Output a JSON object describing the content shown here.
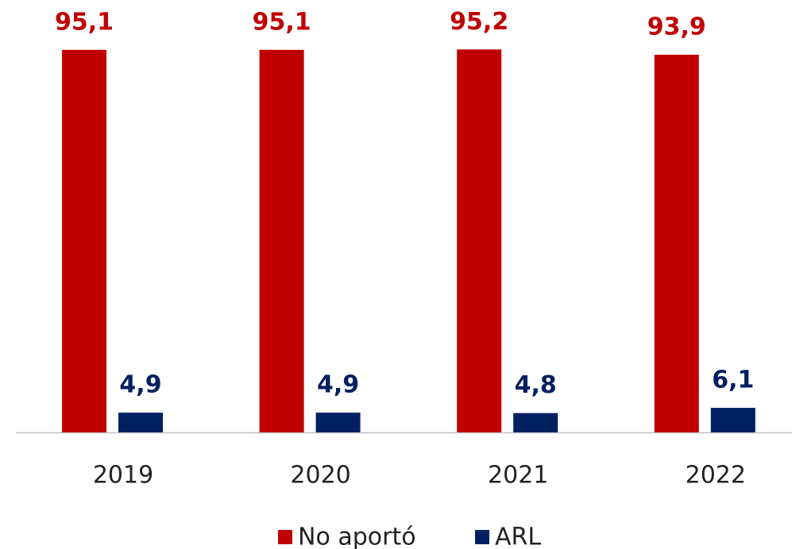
{
  "chart_data": {
    "type": "bar",
    "categories": [
      "2019",
      "2020",
      "2021",
      "2022"
    ],
    "series": [
      {
        "name": "No aportó",
        "color": "#c00000",
        "values": [
          95.1,
          95.1,
          95.2,
          93.9
        ],
        "value_labels": [
          "95,1",
          "95,1",
          "95,2",
          "93,9"
        ]
      },
      {
        "name": "ARL",
        "color": "#002060",
        "values": [
          4.9,
          4.9,
          4.8,
          6.1
        ],
        "value_labels": [
          "4,9",
          "4,9",
          "4,8",
          "6,1"
        ]
      }
    ],
    "legend": "bottom"
  }
}
